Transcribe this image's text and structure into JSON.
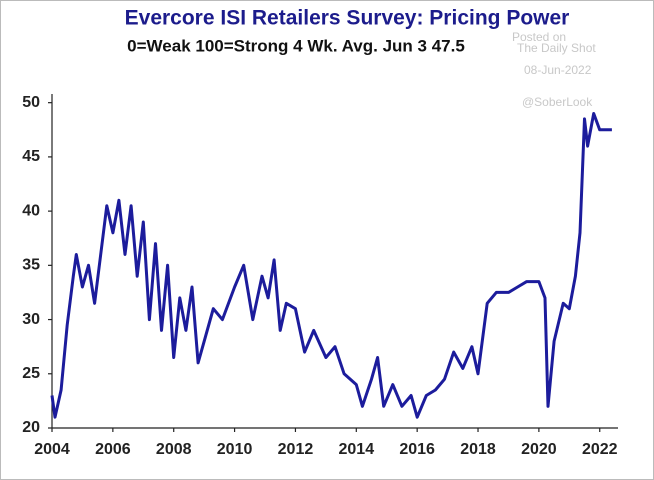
{
  "chart_data": {
    "type": "line",
    "title": "Evercore ISI Retailers Survey: Pricing Power",
    "subtitle": "0=Weak  100=Strong  4 Wk. Avg.  Jun 3  47.5",
    "annotations": [
      "Posted on",
      "The Daily Shot",
      "08-Jun-2022",
      "@SoberLook"
    ],
    "x": [
      2004.0,
      2004.1,
      2004.3,
      2004.5,
      2004.7,
      2004.8,
      2005.0,
      2005.2,
      2005.4,
      2005.6,
      2005.8,
      2006.0,
      2006.2,
      2006.4,
      2006.6,
      2006.8,
      2007.0,
      2007.2,
      2007.4,
      2007.6,
      2007.8,
      2008.0,
      2008.2,
      2008.4,
      2008.6,
      2008.8,
      2009.0,
      2009.3,
      2009.6,
      2010.0,
      2010.3,
      2010.6,
      2010.9,
      2011.1,
      2011.3,
      2011.5,
      2011.7,
      2012.0,
      2012.3,
      2012.6,
      2013.0,
      2013.3,
      2013.6,
      2014.0,
      2014.2,
      2014.5,
      2014.7,
      2014.9,
      2015.2,
      2015.5,
      2015.8,
      2016.0,
      2016.3,
      2016.6,
      2016.9,
      2017.2,
      2017.5,
      2017.8,
      2018.0,
      2018.3,
      2018.6,
      2019.0,
      2019.3,
      2019.6,
      2020.0,
      2020.2,
      2020.3,
      2020.5,
      2020.8,
      2021.0,
      2021.2,
      2021.35,
      2021.5,
      2021.6,
      2021.8,
      2022.0,
      2022.4
    ],
    "series": [
      {
        "name": "Pricing Power",
        "color": "#1c1c9c",
        "values": [
          23,
          21,
          23.5,
          29.5,
          34,
          36,
          33,
          35,
          31.5,
          36,
          40.5,
          38,
          41,
          36,
          40.5,
          34,
          39,
          30,
          37,
          29,
          35,
          26.5,
          32,
          29,
          33,
          26,
          28,
          31,
          30,
          33,
          35,
          30,
          34,
          32,
          35.5,
          29,
          31.5,
          31,
          27,
          29,
          26.5,
          27.5,
          25,
          24,
          22,
          24.5,
          26.5,
          22,
          24,
          22,
          23,
          21,
          23,
          23.5,
          24.5,
          27,
          25.5,
          27.5,
          25,
          31.5,
          32.5,
          32.5,
          33,
          33.5,
          33.5,
          32,
          22,
          28,
          31.5,
          31,
          34,
          38,
          48.5,
          46,
          49,
          47.5,
          47.5
        ]
      }
    ],
    "xlim": [
      2004,
      2022.6
    ],
    "xticks": [
      2004,
      2006,
      2008,
      2010,
      2012,
      2014,
      2016,
      2018,
      2020,
      2022
    ],
    "ylim": [
      20,
      50.8
    ],
    "yticks": [
      20,
      25,
      30,
      35,
      40,
      45,
      50
    ],
    "grid": false
  }
}
